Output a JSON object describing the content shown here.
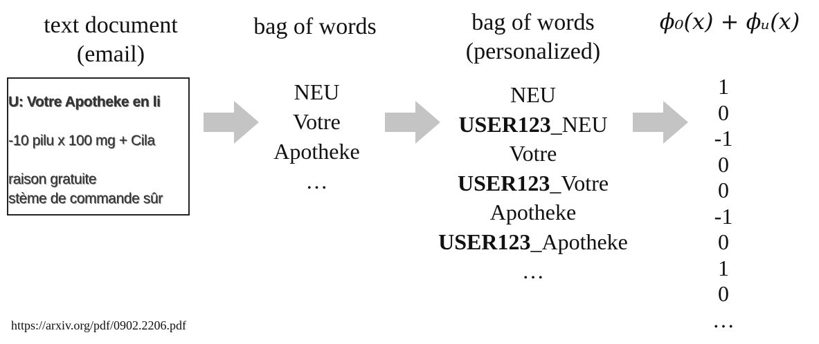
{
  "headings": {
    "document": [
      "text document",
      "(email)"
    ],
    "bag": [
      "bag of words"
    ],
    "personalized": [
      "bag of words",
      "(personalized)"
    ],
    "formula": "ϕ₀(x) + ϕᵤ(x)"
  },
  "document_lines": [
    {
      "text": "U: Votre Apotheke en li",
      "bold": true
    },
    {
      "text": "-10 pilu x 100 mg + Cila",
      "bold": false
    },
    {
      "text": "raison gratuite",
      "bold": false
    },
    {
      "text": "stème de commande sûr",
      "bold": false
    }
  ],
  "bag_words": [
    "NEU",
    "Votre",
    "Apotheke",
    "…"
  ],
  "personalized_words": [
    {
      "prefix": "",
      "text": "NEU"
    },
    {
      "prefix": "USER123",
      "text": "_NEU"
    },
    {
      "prefix": "",
      "text": "Votre"
    },
    {
      "prefix": "USER123",
      "text": "_Votre"
    },
    {
      "prefix": "",
      "text": "Apotheke"
    },
    {
      "prefix": "USER123",
      "text": "_Apotheke"
    },
    {
      "prefix": "",
      "text": "…"
    }
  ],
  "vector": [
    "1",
    "0",
    "-1",
    "0",
    "0",
    "-1",
    "0",
    "1",
    "0",
    "…"
  ],
  "source_link": "https://arxiv.org/pdf/0902.2206.pdf",
  "colors": {
    "arrow": "#c4c4c4",
    "text": "#111111",
    "border": "#222222"
  }
}
